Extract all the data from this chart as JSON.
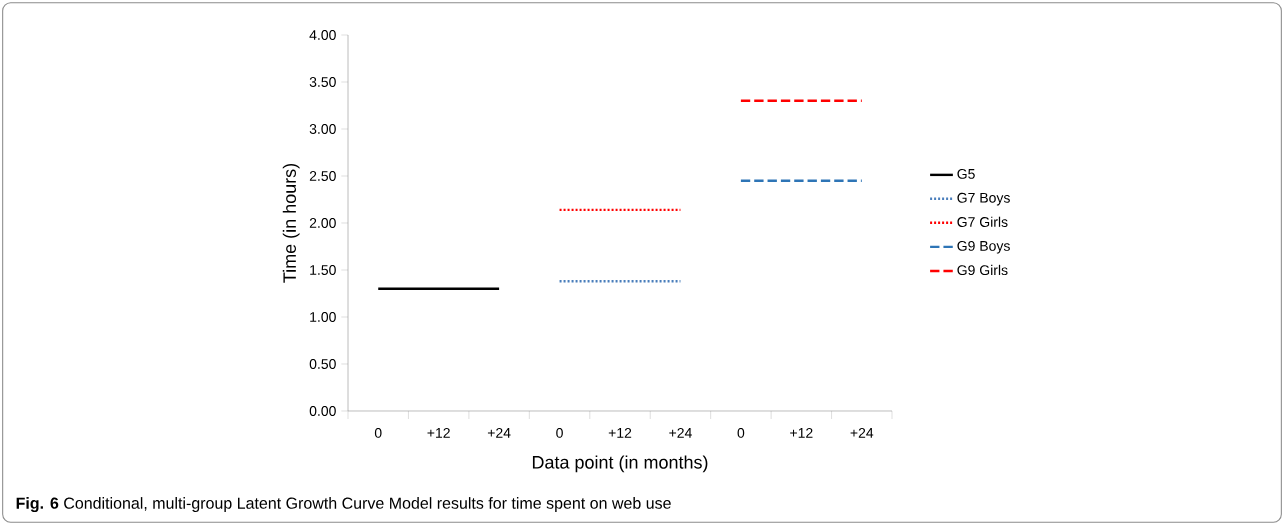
{
  "chart_data": {
    "type": "line",
    "xlabel": "Data point (in months)",
    "ylabel": "Time (in hours)",
    "categories": [
      "0",
      "+12",
      "+24",
      "0",
      "+12",
      "+24",
      "0",
      "+12",
      "+24"
    ],
    "series": [
      {
        "name": "G5",
        "color": "#000000",
        "line_style": "solid",
        "values": [
          1.3,
          1.3,
          1.3,
          null,
          null,
          null,
          null,
          null,
          null
        ]
      },
      {
        "name": "G7 Boys",
        "color": "#4a7ebb",
        "line_style": "dotted",
        "values": [
          null,
          null,
          null,
          1.38,
          1.38,
          1.38,
          null,
          null,
          null
        ]
      },
      {
        "name": "G7 Girls",
        "color": "#ff0000",
        "line_style": "dotted",
        "values": [
          null,
          null,
          null,
          2.14,
          2.14,
          2.14,
          null,
          null,
          null
        ]
      },
      {
        "name": "G9 Boys",
        "color": "#2e75b6",
        "line_style": "dashed",
        "values": [
          null,
          null,
          null,
          null,
          null,
          null,
          2.45,
          2.45,
          2.45
        ]
      },
      {
        "name": "G9 Girls",
        "color": "#ff0000",
        "line_style": "dashed",
        "values": [
          null,
          null,
          null,
          null,
          null,
          null,
          3.3,
          3.3,
          3.3
        ]
      }
    ],
    "ylim": [
      0,
      4
    ],
    "yticks": [
      {
        "value": 0,
        "label": "0.00"
      },
      {
        "value": 0.5,
        "label": "0.50"
      },
      {
        "value": 1,
        "label": "1.00"
      },
      {
        "value": 1.5,
        "label": "1.50"
      },
      {
        "value": 2,
        "label": "2.00"
      },
      {
        "value": 2.5,
        "label": "2.50"
      },
      {
        "value": 3,
        "label": "3.00"
      },
      {
        "value": 3.5,
        "label": "3.50"
      },
      {
        "value": 4,
        "label": "4.00"
      }
    ],
    "grid": false,
    "legend": "right",
    "marker": "none",
    "annotations": [
      "**Fig. 6** Conditional, multi-group Latent Growth Curve Model results for time spent on web use"
    ]
  }
}
